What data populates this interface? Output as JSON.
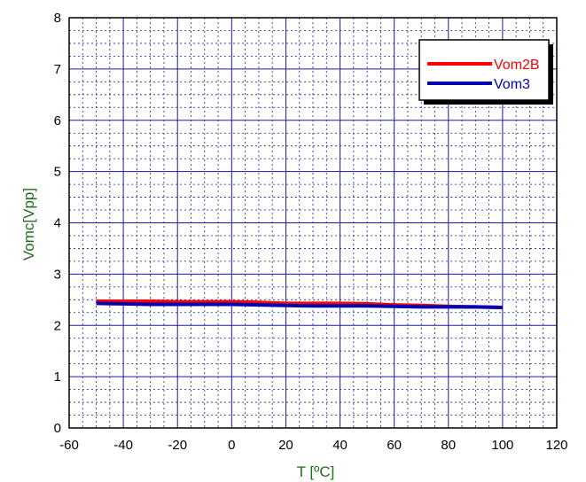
{
  "chart_data": {
    "type": "line",
    "xlabel": "T [ºC]",
    "ylabel": "Vomc[Vpp]",
    "xlim": [
      -60,
      120
    ],
    "ylim": [
      0,
      8
    ],
    "xticks": [
      -60,
      -40,
      -20,
      0,
      20,
      40,
      60,
      80,
      100,
      120
    ],
    "yticks": [
      0,
      1,
      2,
      3,
      4,
      5,
      6,
      7,
      8
    ],
    "grid": true,
    "minor_grid": true,
    "legend_position": "top-right",
    "colors": {
      "major_grid": "#1a1aa8",
      "minor_grid": "#1a1aa8",
      "axis_title": "#1e6e1e"
    },
    "series": [
      {
        "name": "Vom2B",
        "color": "#ff0000",
        "x": [
          -50,
          -40,
          -30,
          -20,
          -10,
          0,
          10,
          20,
          30,
          40,
          50,
          60,
          70,
          80,
          90,
          100
        ],
        "y": [
          2.47,
          2.47,
          2.47,
          2.46,
          2.46,
          2.46,
          2.45,
          2.43,
          2.43,
          2.43,
          2.42,
          2.4,
          2.39,
          2.37,
          2.36,
          2.35
        ]
      },
      {
        "name": "Vom3",
        "color": "#0000b0",
        "x": [
          -50,
          -40,
          -30,
          -20,
          -10,
          0,
          10,
          20,
          30,
          40,
          50,
          60,
          70,
          80,
          90,
          100
        ],
        "y": [
          2.43,
          2.42,
          2.41,
          2.41,
          2.41,
          2.41,
          2.4,
          2.39,
          2.38,
          2.38,
          2.38,
          2.37,
          2.36,
          2.36,
          2.36,
          2.35
        ]
      }
    ]
  }
}
